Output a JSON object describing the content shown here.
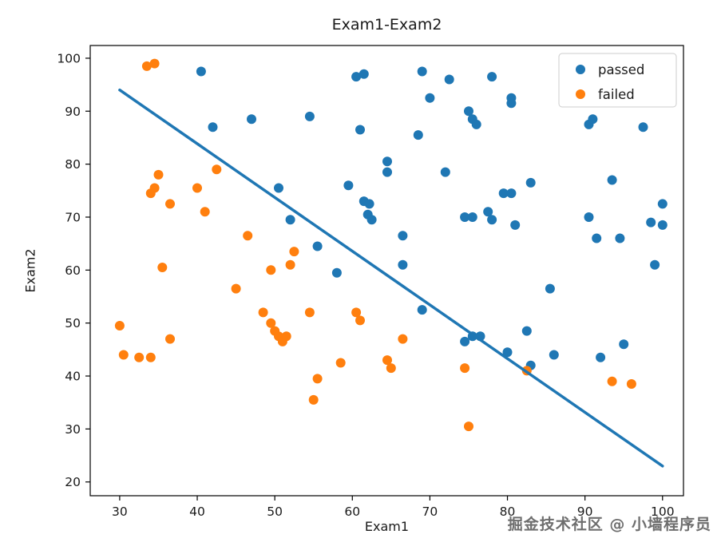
{
  "chart_data": {
    "type": "scatter",
    "title": "Exam1-Exam2",
    "xlabel": "Exam1",
    "ylabel": "Exam2",
    "xlim": [
      26.2,
      102.7
    ],
    "ylim": [
      17.4,
      102.4
    ],
    "xticks": [
      30,
      40,
      50,
      60,
      70,
      80,
      90,
      100
    ],
    "yticks": [
      20,
      30,
      40,
      50,
      60,
      70,
      80,
      90,
      100
    ],
    "grid": false,
    "legend_position": "upper right",
    "marker_radius": 6,
    "series": [
      {
        "name": "passed",
        "color": "#1f77b4",
        "marker": "circle",
        "points": [
          [
            40.5,
            97.5
          ],
          [
            42,
            87
          ],
          [
            47,
            88.5
          ],
          [
            54.5,
            89
          ],
          [
            50.5,
            75.5
          ],
          [
            52,
            69.5
          ],
          [
            55.5,
            64.5
          ],
          [
            58,
            59.5
          ],
          [
            59.5,
            76
          ],
          [
            60.5,
            96.5
          ],
          [
            61.5,
            97
          ],
          [
            61,
            86.5
          ],
          [
            61.5,
            73
          ],
          [
            62.2,
            72.5
          ],
          [
            62,
            70.5
          ],
          [
            62.5,
            69.5
          ],
          [
            64.5,
            80.5
          ],
          [
            64.5,
            78.5
          ],
          [
            66.5,
            66.5
          ],
          [
            66.5,
            61
          ],
          [
            68.5,
            85.5
          ],
          [
            69,
            97.5
          ],
          [
            69,
            52.5
          ],
          [
            70,
            92.5
          ],
          [
            72.5,
            96
          ],
          [
            72,
            78.5
          ],
          [
            74.5,
            70
          ],
          [
            75.5,
            70
          ],
          [
            75,
            90
          ],
          [
            75.5,
            88.5
          ],
          [
            76,
            87.5
          ],
          [
            74.5,
            46.5
          ],
          [
            75.5,
            47.5
          ],
          [
            76.5,
            47.5
          ],
          [
            78,
            96.5
          ],
          [
            77.5,
            71
          ],
          [
            78,
            69.5
          ],
          [
            79.5,
            74.5
          ],
          [
            80.5,
            74.5
          ],
          [
            80.5,
            92.5
          ],
          [
            80.5,
            91.5
          ],
          [
            81,
            68.5
          ],
          [
            80,
            44.5
          ],
          [
            82.5,
            48.5
          ],
          [
            83,
            76.5
          ],
          [
            83,
            42
          ],
          [
            85.5,
            56.5
          ],
          [
            86,
            44
          ],
          [
            90.5,
            87.5
          ],
          [
            91,
            88.5
          ],
          [
            90.5,
            70
          ],
          [
            91.5,
            66
          ],
          [
            92,
            43.5
          ],
          [
            93.5,
            77
          ],
          [
            94.5,
            66
          ],
          [
            95,
            46
          ],
          [
            97.5,
            87
          ],
          [
            98.5,
            69
          ],
          [
            100,
            68.5
          ],
          [
            100,
            72.5
          ],
          [
            99,
            61
          ]
        ]
      },
      {
        "name": "failed",
        "color": "#ff7f0e",
        "marker": "circle",
        "points": [
          [
            30,
            49.5
          ],
          [
            30.5,
            44
          ],
          [
            32.5,
            43.5
          ],
          [
            34,
            43.5
          ],
          [
            33.5,
            98.5
          ],
          [
            34.5,
            99
          ],
          [
            34.5,
            75.5
          ],
          [
            34,
            74.5
          ],
          [
            35,
            78
          ],
          [
            35.5,
            60.5
          ],
          [
            36.5,
            72.5
          ],
          [
            36.5,
            47
          ],
          [
            40,
            75.5
          ],
          [
            41,
            71
          ],
          [
            42.5,
            79
          ],
          [
            45,
            56.5
          ],
          [
            46.5,
            66.5
          ],
          [
            48.5,
            52
          ],
          [
            49.5,
            60
          ],
          [
            49.5,
            50
          ],
          [
            50,
            48.5
          ],
          [
            50.5,
            47.5
          ],
          [
            51,
            46.5
          ],
          [
            51.5,
            47.5
          ],
          [
            52,
            61
          ],
          [
            52.5,
            63.5
          ],
          [
            54.5,
            52
          ],
          [
            55,
            35.5
          ],
          [
            55.5,
            39.5
          ],
          [
            58.5,
            42.5
          ],
          [
            60.5,
            52
          ],
          [
            61,
            50.5
          ],
          [
            64.5,
            43
          ],
          [
            65,
            41.5
          ],
          [
            66.5,
            47
          ],
          [
            74.5,
            41.5
          ],
          [
            75,
            30.5
          ],
          [
            82.5,
            41
          ],
          [
            93.5,
            39
          ],
          [
            96,
            38.5
          ]
        ]
      }
    ],
    "decision_line": {
      "color": "#1f77b4",
      "width": 3.5,
      "from": [
        30,
        94
      ],
      "to": [
        100,
        23
      ]
    }
  },
  "watermark": {
    "text": "掘金技术社区 @ 小墙程序员"
  }
}
